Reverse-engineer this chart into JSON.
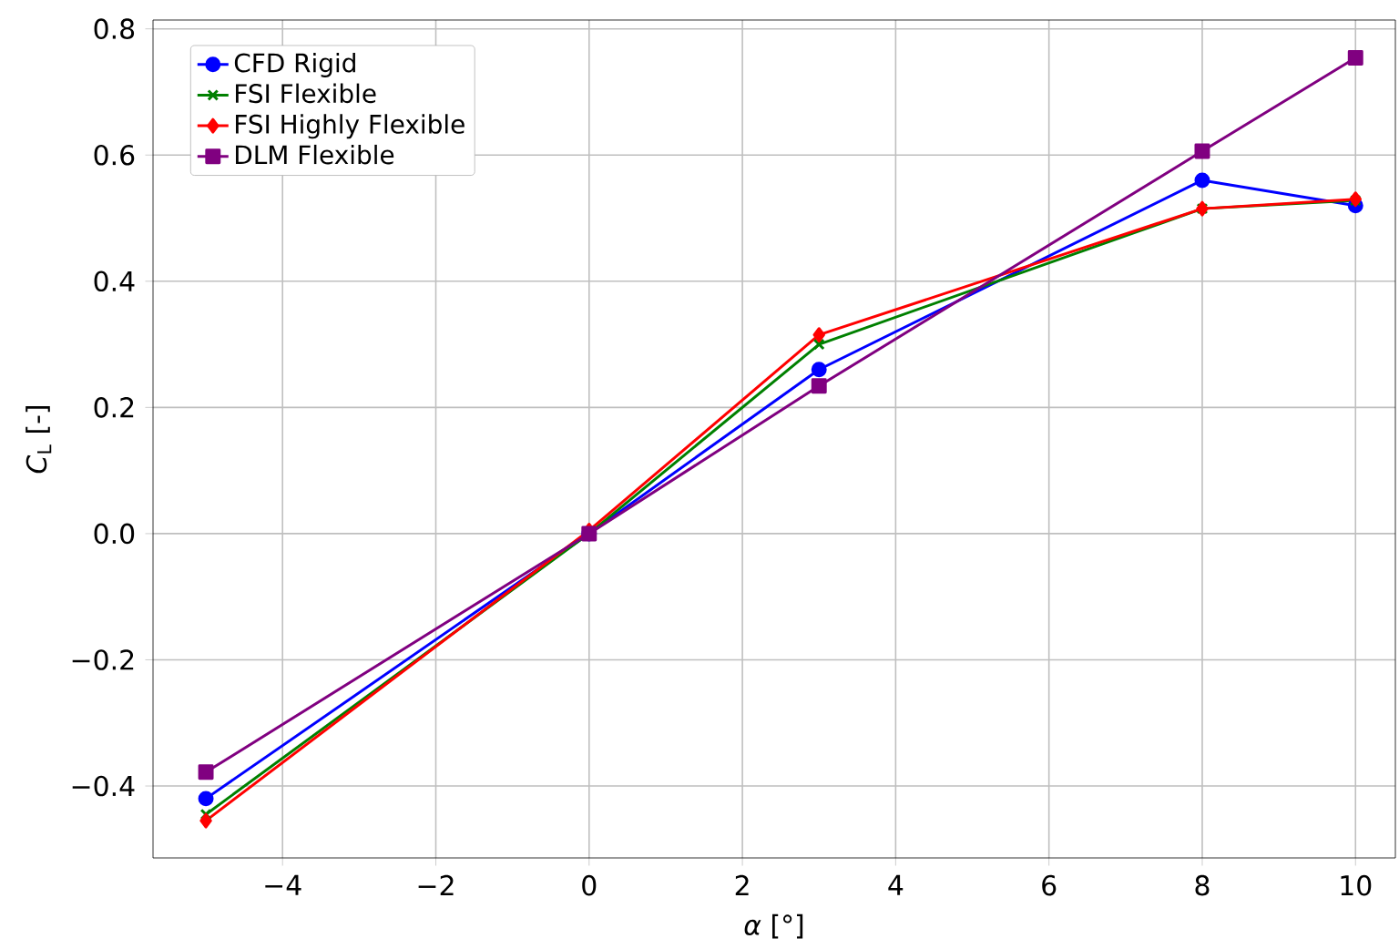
{
  "chart_data": {
    "type": "line",
    "xlabel": "*α* [°]",
    "ylabel": "*C*$_{L}$ [-]",
    "x": [
      -5,
      0,
      3,
      8,
      10
    ],
    "series": [
      {
        "name": "CFD Rigid",
        "color": "#0000ff",
        "marker": "circle",
        "values": [
          -0.42,
          0.0,
          0.26,
          0.56,
          0.52
        ]
      },
      {
        "name": "FSI Flexible",
        "color": "#008000",
        "marker": "cross",
        "values": [
          -0.445,
          0.0,
          0.3,
          0.515,
          0.528
        ]
      },
      {
        "name": "FSI Highly Flexible",
        "color": "#ff0000",
        "marker": "diamond",
        "values": [
          -0.455,
          0.005,
          0.315,
          0.515,
          0.53
        ]
      },
      {
        "name": "DLM Flexible",
        "color": "#800080",
        "marker": "square",
        "values": [
          -0.378,
          0.0,
          0.234,
          0.606,
          0.754
        ]
      }
    ],
    "xlim": [
      -5.69,
      10.52
    ],
    "ylim": [
      -0.514,
      0.814
    ],
    "xticks": [
      {
        "value": -4,
        "label": "−4"
      },
      {
        "value": -2,
        "label": "−2"
      },
      0,
      2,
      4,
      6,
      8,
      10
    ],
    "yticks": [
      {
        "value": -0.4,
        "label": "−0.4"
      },
      {
        "value": -0.2,
        "label": "−0.2"
      },
      {
        "value": 0.0,
        "label": "0.0"
      },
      {
        "value": 0.2,
        "label": "0.2"
      },
      {
        "value": 0.4,
        "label": "0.4"
      },
      {
        "value": 0.6,
        "label": "0.6"
      },
      {
        "value": 0.8,
        "label": "0.8"
      }
    ],
    "grid": true,
    "legend": "top left",
    "line_style": "solid"
  }
}
